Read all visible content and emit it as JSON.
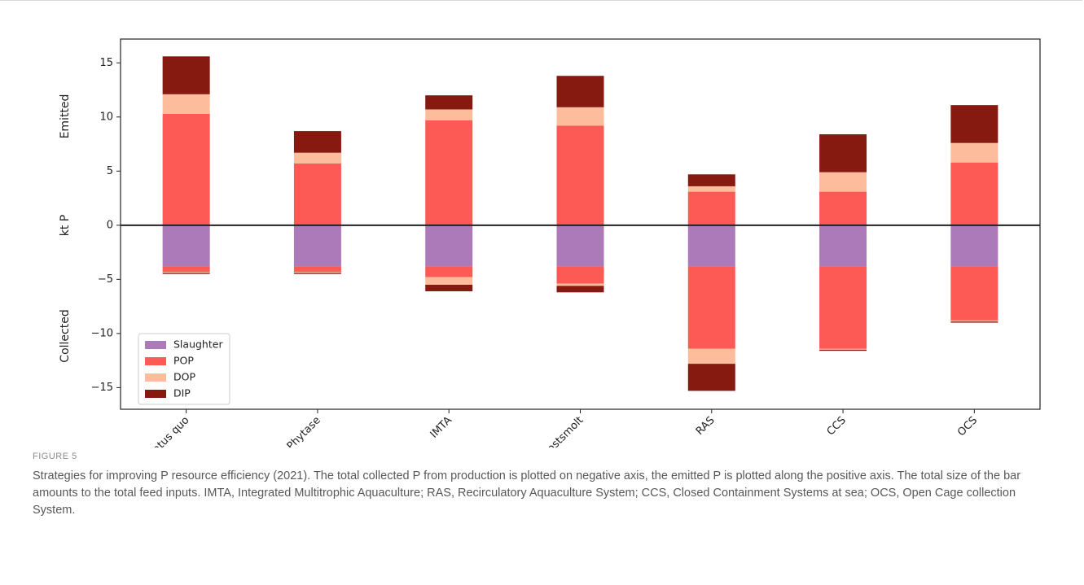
{
  "chart_data": {
    "type": "bar",
    "stacked": true,
    "categories": [
      "Status quo",
      "Phytase",
      "IMTA",
      "Postsmolt",
      "RAS",
      "CCS",
      "OCS"
    ],
    "ylabel": "kt P",
    "ylabel_upper": "Emitted",
    "ylabel_lower": "Collected",
    "ylim": [
      -17,
      17.2
    ],
    "yticks": [
      -15,
      -10,
      -5,
      0,
      5,
      10,
      15
    ],
    "legend_position": "lower-left",
    "emitted": [
      {
        "name": "POP",
        "color": "#fd5955",
        "values": [
          10.3,
          5.7,
          9.7,
          9.2,
          3.1,
          3.1,
          5.8
        ]
      },
      {
        "name": "DOP",
        "color": "#fdbc9b",
        "values": [
          1.8,
          1.0,
          1.0,
          1.7,
          0.5,
          1.8,
          1.8
        ]
      },
      {
        "name": "DIP",
        "color": "#861a11",
        "values": [
          3.5,
          2.0,
          1.3,
          2.9,
          1.1,
          3.5,
          3.5
        ]
      }
    ],
    "collected": [
      {
        "name": "Slaughter",
        "color": "#ac79b9",
        "values": [
          3.8,
          3.8,
          3.8,
          3.8,
          3.8,
          3.8,
          3.8
        ]
      },
      {
        "name": "POP",
        "color": "#fd5955",
        "values": [
          0.5,
          0.5,
          1.0,
          1.6,
          7.6,
          7.6,
          5.0
        ]
      },
      {
        "name": "DOP",
        "color": "#fdbc9b",
        "values": [
          0.1,
          0.1,
          0.7,
          0.2,
          1.4,
          0.1,
          0.1
        ]
      },
      {
        "name": "DIP",
        "color": "#861a11",
        "values": [
          0.1,
          0.1,
          0.6,
          0.6,
          2.5,
          0.1,
          0.1
        ]
      }
    ],
    "legend": [
      {
        "name": "Slaughter",
        "color": "#ac79b9"
      },
      {
        "name": "POP",
        "color": "#fd5955"
      },
      {
        "name": "DOP",
        "color": "#fdbc9b"
      },
      {
        "name": "DIP",
        "color": "#861a11"
      }
    ]
  },
  "caption": {
    "label": "FIGURE 5",
    "text": "Strategies for improving P resource efficiency (2021). The total collected P from production is plotted on negative axis, the emitted P is plotted along the positive axis. The total size of the bar amounts to the total feed inputs. IMTA, Integrated Multitrophic Aquaculture; RAS, Recirculatory Aquaculture System; CCS, Closed Containment Systems at sea; OCS, Open Cage collection System."
  }
}
